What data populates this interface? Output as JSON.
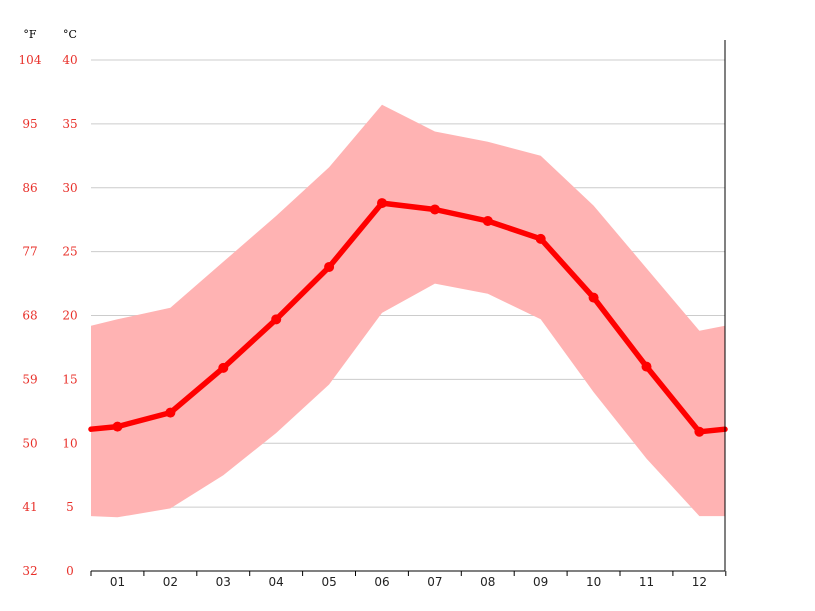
{
  "colors": {
    "line": "#ff0000",
    "band": "#ffb3b3",
    "axis_text": "#e8302a",
    "grid": "#cccccc",
    "axis": "#000000"
  },
  "chart_data": {
    "type": "line",
    "title": "",
    "xlabel": "",
    "ylabel": "",
    "y_unit_label": "°C",
    "y2_unit_label": "°F",
    "categories": [
      "01",
      "02",
      "03",
      "04",
      "05",
      "06",
      "07",
      "08",
      "09",
      "10",
      "11",
      "12"
    ],
    "ylim": [
      0,
      40
    ],
    "y_ticks": [
      0,
      5,
      10,
      15,
      20,
      25,
      30,
      35,
      40
    ],
    "y2_ticks": [
      "32",
      "41",
      "50",
      "59",
      "68",
      "77",
      "86",
      "95",
      "104"
    ],
    "grid": true,
    "series": [
      {
        "type": "line",
        "values": [
          11.3,
          12.4,
          15.9,
          19.7,
          23.8,
          28.8,
          28.3,
          27.4,
          26.0,
          21.4,
          16.0,
          10.9
        ]
      },
      {
        "type": "range",
        "low": [
          4.2,
          4.9,
          7.5,
          10.8,
          14.6,
          20.2,
          22.5,
          21.7,
          19.7,
          14.0,
          8.8,
          4.3
        ],
        "high": [
          19.7,
          20.6,
          24.2,
          27.8,
          31.6,
          36.5,
          34.4,
          33.6,
          32.5,
          28.6,
          23.7,
          18.8
        ]
      }
    ],
    "band_edge": {
      "left": {
        "value": 11.1,
        "low": 4.3,
        "high": 19.2
      },
      "right": {
        "value": 11.1,
        "low": 4.3,
        "high": 19.2
      }
    }
  }
}
